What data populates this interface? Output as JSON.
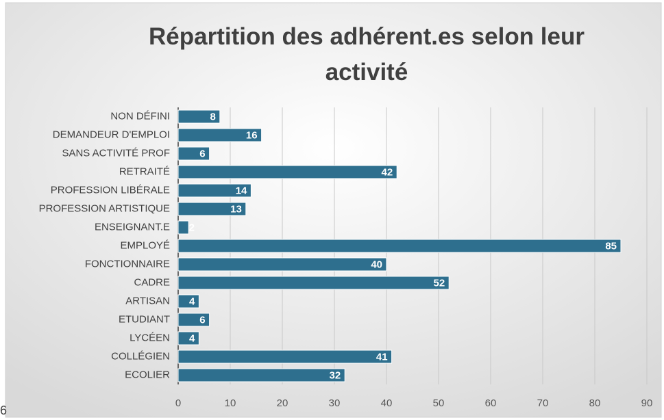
{
  "chart_data": {
    "type": "hbar",
    "title": "Répartition des adhérent.es selon leur activité",
    "categories": [
      "NON DÉFINI",
      "DEMANDEUR D'EMPLOI",
      "SANS ACTIVITÉ PROF",
      "RETRAITÉ",
      "PROFESSION LIBÉRALE",
      "PROFESSION ARTISTIQUE",
      "ENSEIGNANT.E",
      "EMPLOYÉ",
      "FONCTIONNAIRE",
      "CADRE",
      "ARTISAN",
      "ETUDIANT",
      "LYCÉEN",
      "COLLÉGIEN",
      "ECOLIER"
    ],
    "values": [
      8,
      16,
      6,
      42,
      14,
      13,
      2,
      85,
      40,
      52,
      4,
      6,
      4,
      41,
      32
    ],
    "color": "#2e6f8e",
    "xlim": [
      0,
      90
    ],
    "xticks": [
      0,
      10,
      20,
      30,
      40,
      50,
      60,
      70,
      80,
      90
    ],
    "grid": true
  },
  "fragment_text": "6"
}
